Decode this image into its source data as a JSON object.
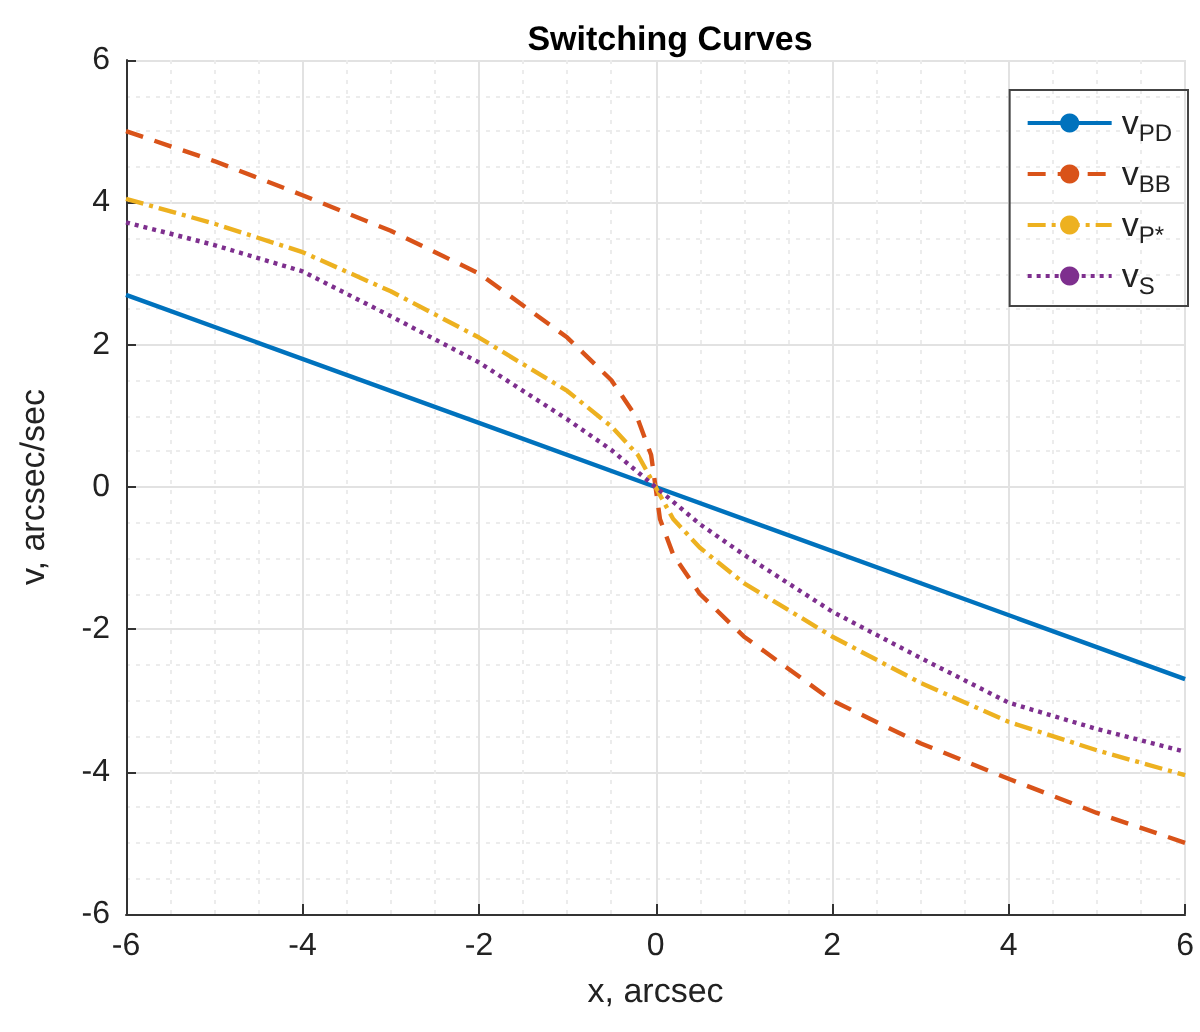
{
  "chart_data": {
    "type": "line",
    "title": "Switching Curves",
    "xlabel": "x, arcsec",
    "ylabel": "v, arcsec/sec",
    "xlim": [
      -6,
      6
    ],
    "ylim": [
      -6,
      6
    ],
    "xticks": [
      -6,
      -4,
      -2,
      0,
      2,
      4,
      6
    ],
    "yticks": [
      -6,
      -4,
      -2,
      0,
      2,
      4,
      6
    ],
    "grid": true,
    "legend": "top right",
    "marker": "none",
    "series": [
      {
        "name": "v$_{PD}$",
        "color": "#0072bd",
        "line_style": "solid",
        "x": [
          -6,
          0,
          6
        ],
        "values": [
          2.7,
          0,
          -2.7
        ]
      },
      {
        "name": "v$_{BB}$",
        "color": "#d95319",
        "line_style": "dashed",
        "x": [
          -6,
          -5,
          -4,
          -3,
          -2,
          -1,
          -0.5,
          -0.2,
          -0.05,
          0,
          0.05,
          0.2,
          0.5,
          1,
          2,
          3,
          4,
          5,
          6
        ],
        "values": [
          5.0,
          4.58,
          4.1,
          3.6,
          3.0,
          2.1,
          1.5,
          0.95,
          0.45,
          0,
          -0.45,
          -0.95,
          -1.5,
          -2.1,
          -3.0,
          -3.6,
          -4.1,
          -4.58,
          -5.0
        ]
      },
      {
        "name": "v$_{P*}$",
        "color": "#edb120",
        "line_style": "dashdot",
        "x": [
          -6,
          -5,
          -4,
          -3,
          -2,
          -1,
          -0.5,
          -0.2,
          0,
          0.2,
          0.5,
          1,
          2,
          3,
          4,
          5,
          6
        ],
        "values": [
          4.05,
          3.7,
          3.3,
          2.75,
          2.1,
          1.35,
          0.85,
          0.45,
          0,
          -0.45,
          -0.85,
          -1.35,
          -2.1,
          -2.75,
          -3.3,
          -3.7,
          -4.05
        ]
      },
      {
        "name": "v$_{S}$",
        "color": "#7e2f8e",
        "line_style": "dotted",
        "x": [
          -6,
          -5,
          -4,
          -3,
          -2,
          -1,
          -0.5,
          0,
          0.5,
          1,
          2,
          3,
          4,
          5,
          6
        ],
        "values": [
          3.72,
          3.4,
          3.03,
          2.4,
          1.75,
          0.95,
          0.52,
          0,
          -0.52,
          -0.95,
          -1.75,
          -2.4,
          -3.03,
          -3.4,
          -3.72
        ]
      }
    ]
  }
}
